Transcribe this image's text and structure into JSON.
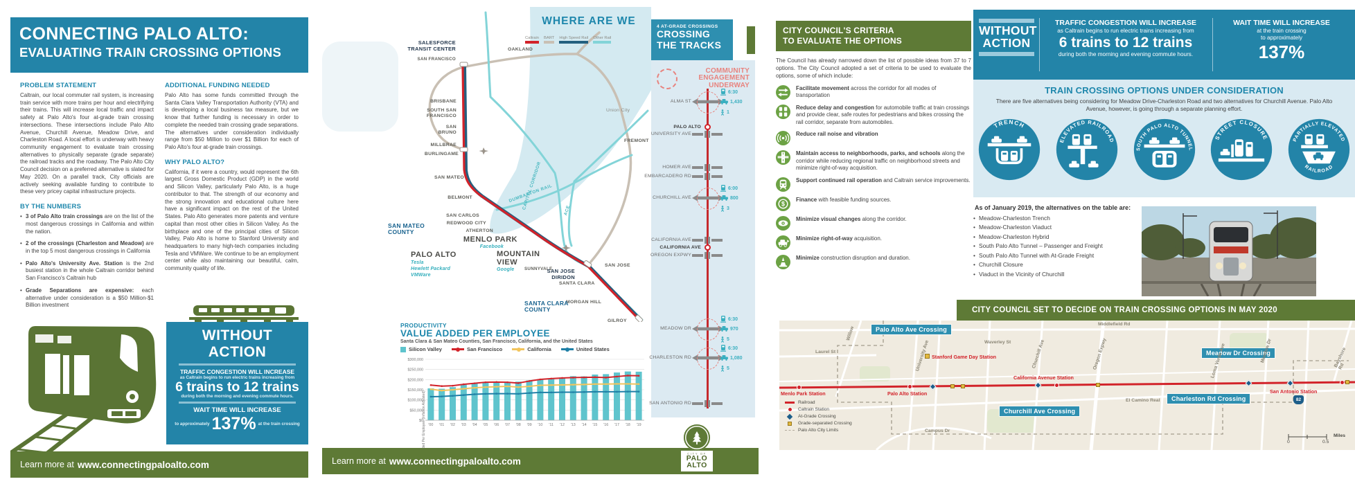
{
  "colors": {
    "teal": "#2384a8",
    "heading_blue": "#1e87ac",
    "olive": "#5e7a36",
    "red": "#d2232a",
    "pink": "#e8837e",
    "light_blue": "#d9eaf2",
    "icon_green": "#6ca244",
    "chart_teal": "#5fc4cd",
    "chart_yellow": "#f2c45c",
    "chart_blue": "#1e7fa6",
    "bart_gray": "#c9c0b4",
    "hsr_navy": "#24607f",
    "other_rail": "#83d4d8"
  },
  "page1": {
    "title_line1": "CONNECTING PALO ALTO:",
    "title_line2": "EVALUATING TRAIN CROSSING OPTIONS",
    "problem": {
      "heading": "PROBLEM STATEMENT",
      "body": "Caltrain, our local commuter rail system, is increasing train service with more trains per hour and electrifying their trains. This will increase local traffic and impact safety at Palo Alto's four at-grade train crossing intersections. These intersections include Palo Alto Avenue, Churchill Avenue, Meadow Drive, and Charleston Road. A local effort is underway with heavy community engagement to evaluate train crossing alternatives to physically separate (grade separate) the railroad tracks and the roadway. The Palo Alto City Council decision on a preferred alternative is slated for May 2020. On a parallel track, City officials are actively seeking available funding to contribute to these very pricey capital infrastructure projects."
    },
    "numbers": {
      "heading": "BY THE NUMBERS",
      "bullets": [
        {
          "lead": "3 of Palo Alto train crossings",
          "rest": " are on the list of the most dangerous crossings in California and within the nation."
        },
        {
          "lead": "2 of the crossings (Charleston and Meadow)",
          "rest": " are in the top 5 most dangerous crossings in California"
        },
        {
          "lead": "Palo Alto's University Ave. Station",
          "rest": " is the 2nd busiest station in the whole Caltrain corridor behind San Francisco's Caltrain hub"
        },
        {
          "lead": "Grade Separations are expensive:",
          "rest": " each alternative under consideration is a $50 Million-$1 Billion investment"
        }
      ]
    },
    "funding": {
      "heading": "ADDITIONAL FUNDING NEEDED",
      "body": "Palo Alto has some funds committed through the Santa Clara Valley Transportation Authority (VTA) and is developing a local business tax measure, but we know that further funding is necessary in order to complete the needed train crossing grade separations. The alternatives under consideration individually range from $50 Million to over $1 Billion for each of Palo Alto's four at-grade train crossings."
    },
    "why": {
      "heading": "WHY PALO ALTO?",
      "body": "California, if it were a country, would represent the 6th largest Gross Domestic Product (GDP) in the world and Silicon Valley, particularly Palo Alto, is a huge contributor to that. The strength of our economy and the strong innovation and educational culture here have a significant impact on the rest of the United States. Palo Alto generates more patents and venture capital than most other cities in Silicon Valley. As the birthplace and one of the principal cities of Silicon Valley, Palo Alto is home to Stanford University and headquarters to many high-tech companies including Tesla and VMWare. We continue to be an employment center while also maintaining our beautiful, calm, community quality of life."
    },
    "without_action": {
      "title": "WITHOUT ACTION",
      "line1": "TRAFFIC CONGESTION WILL INCREASE",
      "line2": "as Caltrain begins to run electric trains increasing from",
      "big": "6 trains to 12 trains",
      "line3": "during both the morning and evening commute hours.",
      "wait_title": "WAIT TIME WILL INCREASE",
      "wait_pre": "to approximately",
      "wait_pct": "137%",
      "wait_post": "at the train crossing"
    },
    "footer": {
      "prefix": "Learn more at",
      "url": "www.connectingpaloalto.com"
    }
  },
  "page2": {
    "map_title": "WHERE ARE WE",
    "rail_legend": [
      {
        "label": "Caltrain",
        "color": "#d2232a"
      },
      {
        "label": "BART",
        "color": "#c9c0b4"
      },
      {
        "label": "High Speed Rail",
        "color": "#24607f"
      },
      {
        "label": "Other Rail",
        "color": "#83d4d8"
      }
    ],
    "map_labels": {
      "salesforce": "SALESFORCE TRANSIT CENTER",
      "san_francisco": "SAN FRANCISCO",
      "oakland": "OAKLAND",
      "brisbane": "BRISBANE",
      "south_sf": "SOUTH SAN FRANCISCO",
      "san_bruno": "SAN BRUNO",
      "millbrae": "MILLBRAE",
      "burlingame": "BURLINGAME",
      "san_mateo": "SAN MATEO",
      "belmont": "BELMONT",
      "san_carlos": "SAN CARLOS",
      "redwood_city": "REDWOOD CITY",
      "atherton": "ATHERTON",
      "menlo_park": "MENLO PARK",
      "facebook": "Facebook",
      "palo_alto": "PALO ALTO",
      "tesla": "Tesla",
      "hp": "Hewlett Packard",
      "vmware": "VMWare",
      "mountain_view": "MOUNTAIN VIEW",
      "google": "Google",
      "sunnyvale": "SUNNYVALE",
      "san_jose_diridon": "SAN JOSE DIRIDON",
      "san_jose": "SAN JOSE",
      "santa_clara": "SANTA CLARA",
      "morgan_hill": "MORGAN HILL",
      "gilroy": "GILROY",
      "union_city": "Union City",
      "fremont": "FREMONT",
      "san_mateo_county": "SAN MATEO COUNTY",
      "santa_clara_county": "SANTA CLARA COUNTY",
      "dumbarton": "DUMBARTON RAIL",
      "capitol_corridor": "CAPITOL CORRIDOR",
      "ace": "ACE"
    },
    "sidebar": {
      "kicker": "4 AT-GRADE CROSSINGS",
      "title1": "CROSSING",
      "title2": "THE TRACKS",
      "engagement1": "COMMUNITY",
      "engagement2": "ENGAGEMENT",
      "engagement3": "UNDERWAY",
      "rows": [
        {
          "label": "ALMA ST",
          "type": "at-grade",
          "train": "6:30",
          "cars": "1,430",
          "peds": "1"
        },
        {
          "label": "PALO ALTO",
          "type": "station"
        },
        {
          "label": "UNIVERSITY AVE",
          "type": "separated"
        },
        {
          "label": "HOMER AVE",
          "type": "separated"
        },
        {
          "label": "EMBARCADERO RD",
          "type": "separated"
        },
        {
          "label": "CHURCHILL AVE",
          "type": "at-grade",
          "train": "6:00",
          "cars": "800",
          "peds": "3"
        },
        {
          "label": "CALIFORNIA AVE",
          "type": "separated"
        },
        {
          "label": "CALIFORNIA AVE",
          "type": "station"
        },
        {
          "label": "OREGON EXPWY",
          "type": "separated"
        },
        {
          "label": "MEADOW DR",
          "type": "at-grade",
          "train": "6:30",
          "cars": "970",
          "peds": "5"
        },
        {
          "label": "CHARLESTON RD",
          "type": "at-grade",
          "train": "6:30",
          "cars": "1,080",
          "peds": "5"
        },
        {
          "label": "SAN ANTONIO RD",
          "type": "separated"
        }
      ]
    },
    "footer": {
      "prefix": "Learn more at",
      "url": "www.connectingpaloalto.com"
    },
    "logo": {
      "city_of": "CITY OF",
      "line1": "PALO",
      "line2": "ALTO"
    }
  },
  "page3": {
    "criteria": {
      "heading1": "CITY COUNCIL'S CRITERIA",
      "heading2": "TO EVALUATE THE OPTIONS",
      "intro": "The Council has already narrowed down the list of possible ideas from 37 to 7 options. The City Council adopted a set of criteria to be used to evaluate the options, some of which include:",
      "items": [
        {
          "icon": "arrows",
          "lead": "Facilitate movement",
          "rest": " across the corridor for all modes of transportation"
        },
        {
          "icon": "congestion",
          "lead": "Reduce delay and congestion",
          "rest": " for automobile traffic at train crossings and provide clear, safe routes for pedestrians and bikes crossing the rail corridor, separate from automobiles."
        },
        {
          "icon": "noise",
          "lead": "Reduce rail noise and vibration",
          "rest": ""
        },
        {
          "icon": "access",
          "lead": "Maintain access to neighborhoods, parks, and schools",
          "rest": " along the corridor while reducing regional traffic on neighborhood streets and minimize right-of-way acquisition."
        },
        {
          "icon": "rail",
          "lead": "Support continued rail operation",
          "rest": " and Caltrain service improvements."
        },
        {
          "icon": "finance",
          "lead": "Finance",
          "rest": " with feasible funding sources."
        },
        {
          "icon": "visual",
          "lead": "Minimize visual changes",
          "rest": " along the corridor."
        },
        {
          "icon": "right-of-way",
          "lead": "Minimize right-of-way",
          "rest": " acquisition."
        },
        {
          "icon": "construction",
          "lead": "Minimize",
          "rest": " construction disruption and duration."
        }
      ]
    },
    "without_action": {
      "title1": "WITHOUT",
      "title2": "ACTION",
      "congestion_title": "TRAFFIC CONGESTION WILL INCREASE",
      "congestion_line": "as Caltrain begins to run electric trains increasing from",
      "congestion_big": "6 trains to 12 trains",
      "congestion_sub": "during both the morning and evening commute hours.",
      "wait_title": "WAIT TIME WILL INCREASE",
      "wait_line1": "at the train crossing",
      "wait_line2": "to approximately",
      "wait_pct": "137%"
    },
    "options": {
      "heading": "TRAIN CROSSING OPTIONS UNDER CONSIDERATION",
      "subheading": "There are five alternatives being considering for Meadow Drive-Charleston Road and two alternatives for Churchill Avenue. Palo Alto Avenue, however, is going through a separate planning effort.",
      "circles": [
        {
          "top": "TRENCH"
        },
        {
          "top": "ELEVATED RAILROAD"
        },
        {
          "top": "SOUTH PALO ALTO TUNNEL"
        },
        {
          "top": "STREET CLOSURE"
        },
        {
          "top": "PARTIALLY ELEVATED",
          "bottom": "RAILROAD"
        }
      ]
    },
    "alternatives": {
      "heading": "As of January 2019, the alternatives on the table are:",
      "items": [
        "Meadow-Charleston Trench",
        "Meadow-Charleston Viaduct",
        "Meadow-Charleston Hybrid",
        "South Palo Alto Tunnel – Passenger and Freight",
        "South Palo Alto Tunnel with At-Grade Freight",
        "Churchill Closure",
        "Viaduct in the Vicinity of Churchill"
      ]
    },
    "decide_bar": "CITY COUNCIL SET TO DECIDE ON TRAIN CROSSING OPTIONS IN MAY 2020",
    "street_map": {
      "crossing_boxes": {
        "palo_alto_ave": "Palo Alto Ave Crossing",
        "meadow": "Meadow Dr Crossing",
        "churchill": "Churchill Ave Crossing",
        "charleston": "Charleston Rd Crossing"
      },
      "stations": {
        "menlo_park": "Menlo Park Station",
        "palo_alto": "Palo Alto Station",
        "stanford": "Stanford Game Day Station",
        "california": "California Avenue Station",
        "san_antonio": "San Antonio Station"
      },
      "streets": {
        "middlefield": "Middlefield Rd",
        "willow": "Willow",
        "waverley": "Waverley St",
        "laurel": "Laurel St",
        "university": "University Ave",
        "churchill": "Churchill Ave",
        "oregon": "Oregon Expwy",
        "el_camino": "El Camino Real",
        "campus": "Campus Dr",
        "loma_verde": "Loma Verde Ave",
        "meadow": "Meadow Dr",
        "bayshore": "Bayshore Rd"
      },
      "highway": "82",
      "legend": {
        "railroad": "Railroad",
        "caltrain_station": "Caltrain Station",
        "at_grade": "At-Grade Crossing",
        "grade_separated": "Grade-separated Crossing",
        "city_limits": "Palo Alto City Limits"
      },
      "scale": {
        "zero": "0",
        "half": "0.5",
        "unit": "Miles"
      }
    }
  },
  "chart_data": {
    "type": "bar",
    "kicker": "PRODUCTIVITY",
    "title": "VALUE ADDED PER EMPLOYEE",
    "subtitle": "Santa Clara & San Mateo Counties, San Francisco, California, and the United States",
    "ylabel": "Value Added Per Employee (Inflation Adjusted)",
    "ylim": [
      0,
      300000
    ],
    "ytick_step": 50000,
    "grid": true,
    "legend_position": "top",
    "categories": [
      "'00",
      "'01",
      "'02",
      "'03",
      "'04",
      "'05",
      "'06",
      "'07",
      "'08",
      "'09",
      "'10",
      "'11",
      "'12",
      "'13",
      "'14",
      "'15",
      "'16",
      "'17",
      "'18",
      "'19"
    ],
    "bar_series": {
      "name": "Silicon Valley",
      "color": "#5fc4cd",
      "values": [
        157000,
        155000,
        163000,
        175000,
        183000,
        187000,
        187000,
        187000,
        190000,
        196000,
        202000,
        206000,
        210000,
        217000,
        216000,
        225000,
        227000,
        235000,
        240000,
        239000
      ]
    },
    "line_series": [
      {
        "name": "San Francisco",
        "color": "#d2232a",
        "values": [
          173000,
          168000,
          170000,
          177000,
          182000,
          187000,
          188000,
          187000,
          183000,
          193000,
          201000,
          205000,
          208000,
          210000,
          211000,
          212000,
          210000,
          215000,
          220000,
          219000
        ]
      },
      {
        "name": "California",
        "color": "#f2c45c",
        "values": [
          153000,
          146000,
          150000,
          155000,
          160000,
          163000,
          165000,
          167000,
          163000,
          167000,
          172000,
          173000,
          174000,
          175000,
          176000,
          178000,
          178000,
          179000,
          179000,
          178000
        ]
      },
      {
        "name": "United States",
        "color": "#1e7fa6",
        "values": [
          116000,
          117000,
          120000,
          124000,
          128000,
          130000,
          131000,
          131000,
          130000,
          134000,
          137000,
          137000,
          138000,
          138000,
          139000,
          140000,
          140000,
          140000,
          141000,
          141000
        ]
      }
    ]
  }
}
